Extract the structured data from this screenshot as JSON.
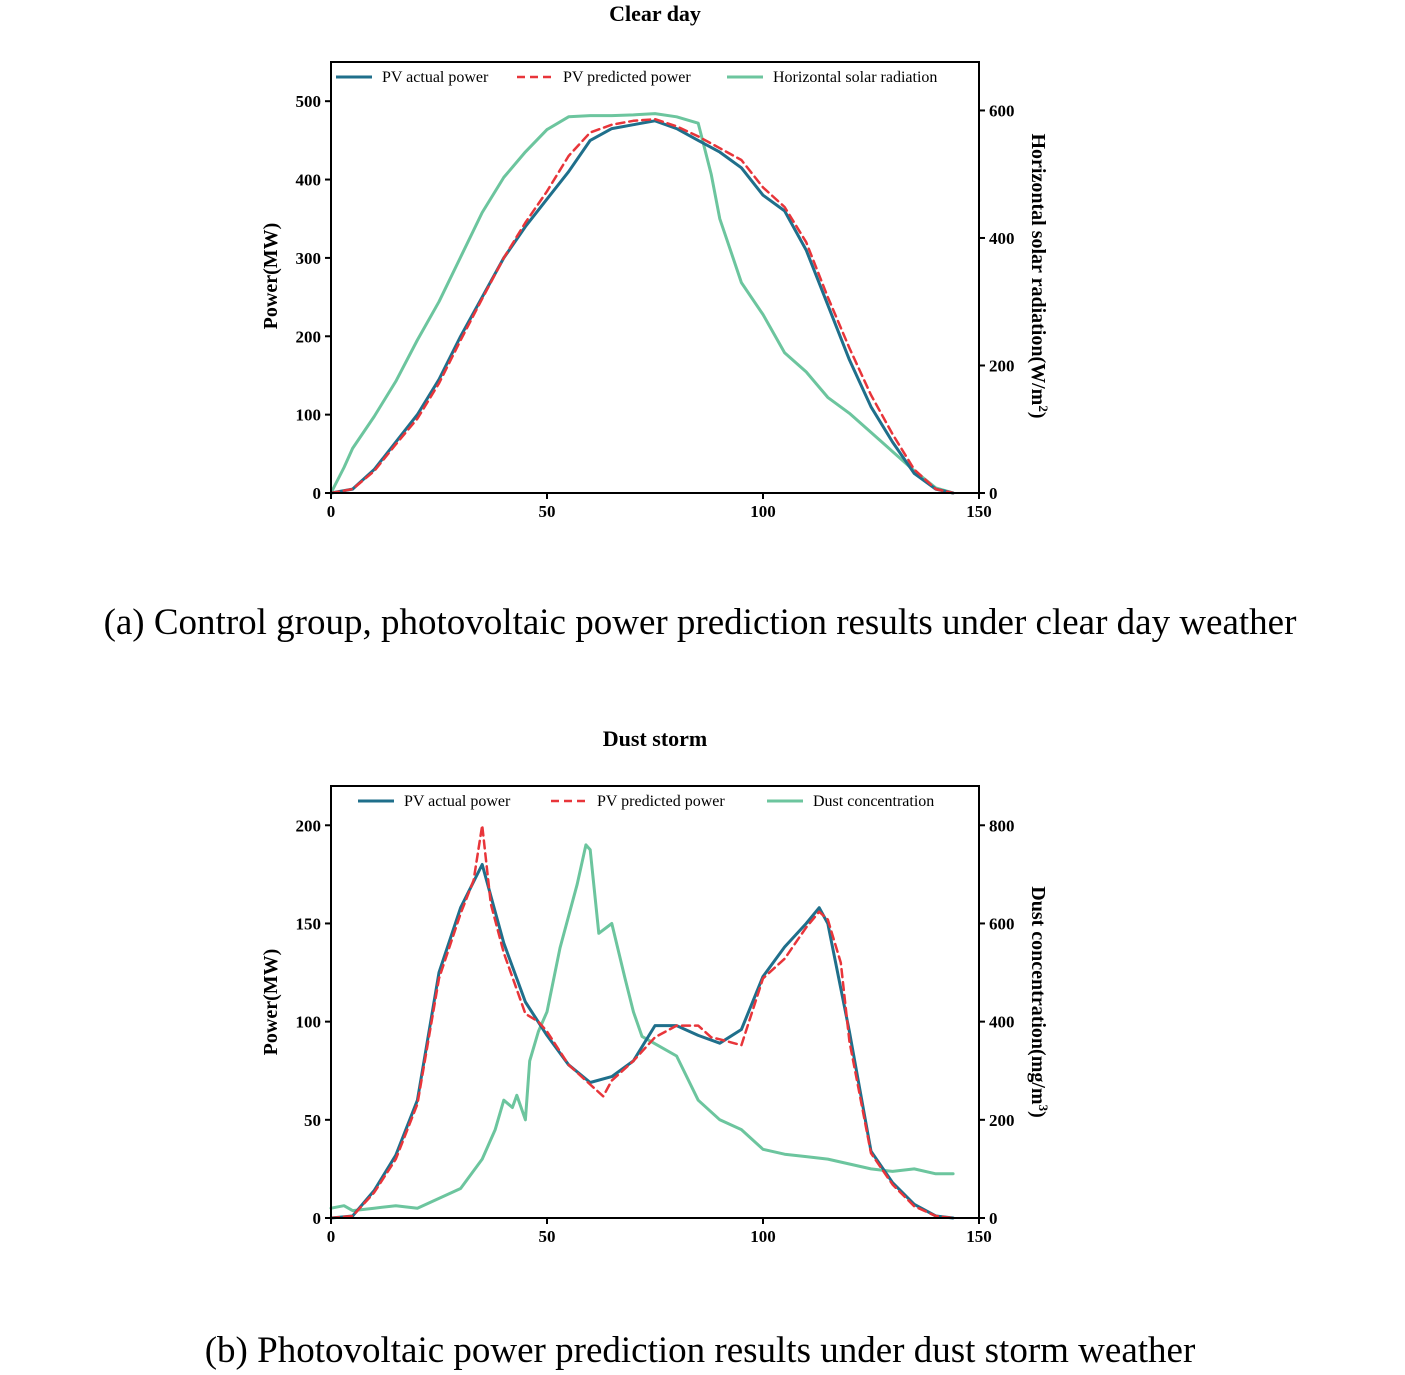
{
  "chart_data": [
    {
      "type": "line",
      "title": "Clear day",
      "caption": "(a) Control group, photovoltaic power prediction results under clear day weather",
      "xlabel": "",
      "ylabel": "Power(MW)",
      "y2label": "Horizontal solar radiation(W/m",
      "y2label_sup": "2",
      "y2label_end": ")",
      "xlim": [
        0,
        150
      ],
      "ylim": [
        0,
        550
      ],
      "y2lim": [
        0,
        676
      ],
      "xticks": [
        0,
        50,
        100,
        150
      ],
      "yticks": [
        0,
        100,
        200,
        300,
        400,
        500
      ],
      "y2ticks": [
        0,
        200,
        400,
        600
      ],
      "legend_position": "top",
      "series": [
        {
          "name": "PV actual power",
          "axis": "left",
          "color": "#1f6f8b",
          "style": "solid",
          "x": [
            0,
            5,
            10,
            15,
            20,
            25,
            30,
            35,
            40,
            45,
            50,
            55,
            60,
            65,
            70,
            75,
            80,
            85,
            90,
            95,
            100,
            105,
            110,
            115,
            120,
            125,
            130,
            135,
            140,
            144
          ],
          "values": [
            0,
            5,
            30,
            65,
            100,
            145,
            200,
            250,
            300,
            340,
            375,
            410,
            450,
            465,
            470,
            475,
            465,
            450,
            435,
            415,
            380,
            360,
            310,
            240,
            170,
            110,
            65,
            25,
            5,
            0
          ]
        },
        {
          "name": "PV predicted power",
          "axis": "left",
          "color": "#e8353a",
          "style": "dashed",
          "x": [
            0,
            5,
            10,
            15,
            20,
            25,
            30,
            35,
            40,
            45,
            50,
            55,
            60,
            65,
            70,
            75,
            80,
            85,
            90,
            95,
            100,
            105,
            110,
            115,
            120,
            125,
            130,
            135,
            140,
            144
          ],
          "values": [
            0,
            5,
            28,
            62,
            95,
            140,
            195,
            248,
            300,
            345,
            385,
            430,
            460,
            470,
            475,
            477,
            468,
            455,
            440,
            425,
            390,
            365,
            320,
            250,
            185,
            125,
            75,
            30,
            5,
            0
          ]
        },
        {
          "name": "Horizontal solar radiation",
          "axis": "right",
          "color": "#6cc59e",
          "style": "solid",
          "x": [
            0,
            3,
            5,
            10,
            15,
            20,
            25,
            30,
            35,
            40,
            45,
            50,
            55,
            60,
            65,
            70,
            75,
            80,
            85,
            88,
            90,
            93,
            95,
            100,
            105,
            110,
            115,
            120,
            125,
            130,
            135,
            140,
            144
          ],
          "values": [
            0,
            40,
            70,
            120,
            175,
            240,
            300,
            370,
            440,
            495,
            535,
            570,
            590,
            592,
            592,
            593,
            595,
            590,
            580,
            500,
            430,
            370,
            330,
            280,
            220,
            190,
            150,
            125,
            95,
            65,
            35,
            8,
            0
          ]
        }
      ]
    },
    {
      "type": "line",
      "title": "Dust storm",
      "caption": "(b) Photovoltaic power prediction results under dust storm weather",
      "xlabel": "",
      "ylabel": "Power(MW)",
      "y2label": "Dust concentration(mg/m",
      "y2label_sup": "3",
      "y2label_end": ")",
      "xlim": [
        0,
        150
      ],
      "ylim": [
        0,
        220
      ],
      "y2lim": [
        0,
        880
      ],
      "xticks": [
        0,
        50,
        100,
        150
      ],
      "yticks": [
        0,
        50,
        100,
        150,
        200
      ],
      "y2ticks": [
        0,
        200,
        400,
        600,
        800
      ],
      "legend_position": "top",
      "series": [
        {
          "name": "PV actual power",
          "axis": "left",
          "color": "#1f6f8b",
          "style": "solid",
          "x": [
            0,
            5,
            10,
            15,
            20,
            25,
            30,
            35,
            40,
            45,
            50,
            55,
            60,
            65,
            70,
            75,
            80,
            85,
            90,
            95,
            100,
            105,
            110,
            113,
            115,
            120,
            125,
            130,
            135,
            140,
            144
          ],
          "values": [
            0,
            1,
            14,
            32,
            60,
            125,
            158,
            180,
            140,
            110,
            93,
            78,
            69,
            72,
            80,
            98,
            98,
            93,
            89,
            96,
            123,
            138,
            150,
            158,
            150,
            95,
            34,
            18,
            7,
            1,
            0
          ]
        },
        {
          "name": "PV predicted power",
          "axis": "left",
          "color": "#e8353a",
          "style": "dashed",
          "x": [
            0,
            5,
            10,
            15,
            20,
            25,
            30,
            33,
            35,
            37,
            40,
            45,
            48,
            50,
            55,
            60,
            63,
            65,
            70,
            75,
            80,
            85,
            88,
            90,
            95,
            100,
            105,
            110,
            113,
            115,
            118,
            120,
            125,
            130,
            135,
            140,
            144
          ],
          "values": [
            0,
            1,
            13,
            30,
            58,
            122,
            155,
            172,
            200,
            160,
            135,
            104,
            100,
            95,
            78,
            68,
            62,
            70,
            80,
            92,
            98,
            98,
            92,
            91,
            88,
            122,
            132,
            148,
            156,
            152,
            130,
            90,
            33,
            17,
            6,
            1,
            0
          ]
        },
        {
          "name": "Dust concentration",
          "axis": "right",
          "color": "#6cc59e",
          "style": "solid",
          "x": [
            0,
            3,
            5,
            10,
            15,
            20,
            25,
            30,
            35,
            38,
            40,
            42,
            43,
            45,
            46,
            48,
            50,
            53,
            57,
            59,
            60,
            62,
            65,
            68,
            70,
            72,
            74,
            76,
            80,
            85,
            90,
            95,
            100,
            105,
            110,
            115,
            120,
            125,
            130,
            135,
            140,
            144
          ],
          "values": [
            20,
            25,
            15,
            20,
            25,
            20,
            40,
            60,
            120,
            180,
            240,
            225,
            250,
            200,
            320,
            380,
            420,
            550,
            680,
            760,
            750,
            580,
            600,
            490,
            420,
            370,
            360,
            350,
            330,
            240,
            200,
            180,
            140,
            130,
            125,
            120,
            110,
            100,
            95,
            100,
            90,
            90
          ]
        }
      ]
    }
  ]
}
